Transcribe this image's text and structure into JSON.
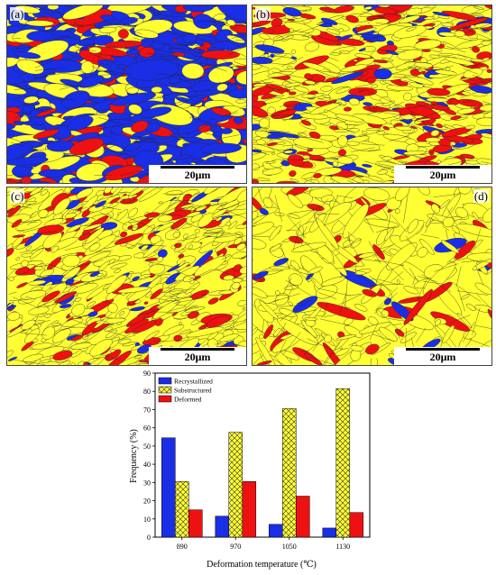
{
  "colors": {
    "recrystallized": "#1a2ee6",
    "substructured": "#ffff33",
    "deformed": "#ee1111",
    "grain_boundary": "#222222"
  },
  "panels": [
    {
      "id": "a",
      "label": "(a)",
      "scale_label": "20μm",
      "fraction": {
        "recrystallized": 54,
        "substructured": 30,
        "deformed": 15
      }
    },
    {
      "id": "b",
      "label": "(b)",
      "scale_label": "20μm",
      "fraction": {
        "recrystallized": 11,
        "substructured": 57,
        "deformed": 30
      }
    },
    {
      "id": "c",
      "label": "(c)",
      "scale_label": "20μm",
      "fraction": {
        "recrystallized": 7,
        "substructured": 70,
        "deformed": 22
      }
    },
    {
      "id": "d",
      "label": "(d)",
      "scale_label": "20μm",
      "fraction": {
        "recrystallized": 5,
        "substructured": 81,
        "deformed": 13
      }
    }
  ],
  "chart_data": {
    "type": "bar",
    "categories": [
      "890",
      "970",
      "1050",
      "1130"
    ],
    "series": [
      {
        "name": "Recrystallized",
        "color": "#1a2ee6",
        "pattern": "solid",
        "values": [
          54.5,
          11.5,
          7,
          5
        ]
      },
      {
        "name": "Substructured",
        "color": "#ffff33",
        "pattern": "crosshatch",
        "values": [
          30.5,
          57.5,
          70.5,
          81.5
        ]
      },
      {
        "name": "Deformed",
        "color": "#ee1111",
        "pattern": "solid",
        "values": [
          15,
          30.5,
          22.5,
          13.5
        ]
      }
    ],
    "xlabel": "Deformation temperature (℃)",
    "ylabel": "Frequency (%)",
    "ylim": [
      0,
      90
    ],
    "yticks": [
      "0",
      "10",
      "20",
      "30",
      "40",
      "50",
      "60",
      "70",
      "80",
      "90"
    ],
    "legend_position": "top-left",
    "grid": false
  }
}
